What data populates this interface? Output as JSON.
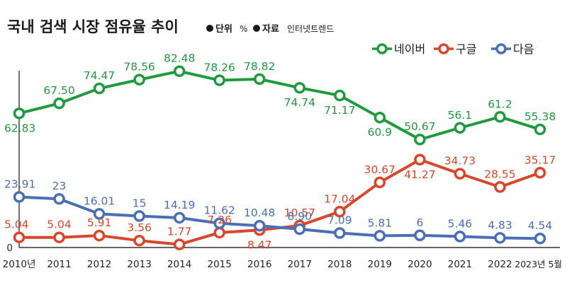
{
  "title": "국내 검색 시장 점유율 추이",
  "meta": {
    "unit_key": "단위",
    "unit_val": "%",
    "source_key": "자료",
    "source_val": "인터넷트렌드"
  },
  "chart_data": {
    "type": "line",
    "categories": [
      "2010년",
      "2011",
      "2012",
      "2013",
      "2014",
      "2015",
      "2016",
      "2017",
      "2018",
      "2019",
      "2020",
      "2021",
      "2022",
      "2023년 5월"
    ],
    "series": [
      {
        "name": "네이버",
        "color": "#1f9a3e",
        "values": [
          62.83,
          67.5,
          74.47,
          78.56,
          82.48,
          78.26,
          78.82,
          74.74,
          71.17,
          60.9,
          50.67,
          56.1,
          61.2,
          55.38
        ],
        "labels": [
          "62.83",
          "67.50",
          "74.47",
          "78.56",
          "82.48",
          "78.26",
          "78.82",
          "74.74",
          "71.17",
          "60.9",
          "50.67",
          "56.1",
          "61.2",
          "55.38"
        ]
      },
      {
        "name": "구글",
        "color": "#d9462b",
        "values": [
          5.04,
          5.04,
          5.91,
          3.56,
          1.77,
          7.26,
          8.47,
          10.57,
          17.04,
          30.67,
          41.27,
          34.73,
          28.55,
          35.17
        ],
        "labels": [
          "5.04",
          "5.04",
          "5.91",
          "3.56",
          "1.77",
          "7.26",
          "8.47",
          "10.57",
          "17.04",
          "30.67",
          "41.27",
          "34.73",
          "28.55",
          "35.17"
        ]
      },
      {
        "name": "다음",
        "color": "#4a6fb5",
        "values": [
          23.91,
          23,
          16.01,
          15,
          14.19,
          11.62,
          10.48,
          8.9,
          7.09,
          5.81,
          6,
          5.46,
          4.83,
          4.54
        ],
        "labels": [
          "23.91",
          "23",
          "16.01",
          "15",
          "14.19",
          "11.62",
          "10.48",
          "8.90",
          "7.09",
          "5.81",
          "6",
          "5.46",
          "4.83",
          "4.54"
        ]
      }
    ],
    "y_tick_label": "0",
    "ylim": [
      0,
      90
    ],
    "legend_position": "top-right",
    "grid": false
  }
}
